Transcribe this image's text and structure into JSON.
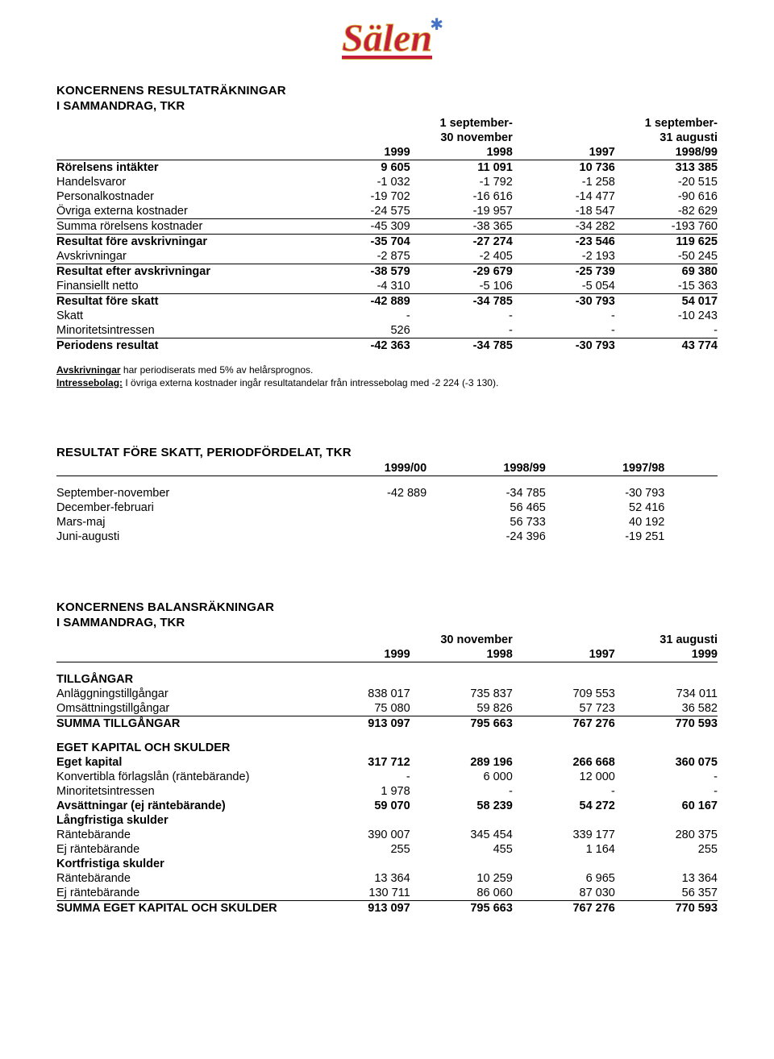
{
  "logo": {
    "text": "Sälen",
    "accent_color": "#c41e3a",
    "star_color": "#4472c4"
  },
  "table1": {
    "title": "KONCERNENS RESULTATRÄKNINGAR",
    "subtitle": "I SAMMANDRAG, TKR",
    "header1": {
      "left": "1 september-",
      "right": "1 september-"
    },
    "header2": {
      "left": "30 november",
      "right": "31 augusti"
    },
    "years": {
      "c1": "1999",
      "c2": "1998",
      "c3": "1997",
      "c4": "1998/99"
    },
    "rows": [
      {
        "label": "Rörelsens intäkter",
        "c1": "9 605",
        "c2": "11 091",
        "c3": "10 736",
        "c4": "313 385",
        "bold": true
      },
      {
        "label": "Handelsvaror",
        "c1": "-1 032",
        "c2": "-1 792",
        "c3": "-1 258",
        "c4": "-20 515"
      },
      {
        "label": "Personalkostnader",
        "c1": "-19 702",
        "c2": "-16 616",
        "c3": "-14 477",
        "c4": "-90 616"
      },
      {
        "label": "Övriga externa kostnader",
        "c1": "-24 575",
        "c2": "-19 957",
        "c3": "-18 547",
        "c4": "-82 629",
        "rule": true
      },
      {
        "label": "Summa rörelsens kostnader",
        "c1": "-45 309",
        "c2": "-38 365",
        "c3": "-34 282",
        "c4": "-193 760",
        "rule": true
      },
      {
        "label": "Resultat före avskrivningar",
        "c1": "-35 704",
        "c2": "-27 274",
        "c3": "-23 546",
        "c4": "119 625",
        "bold": true
      },
      {
        "label": "Avskrivningar",
        "c1": "-2 875",
        "c2": "-2 405",
        "c3": "-2 193",
        "c4": "-50 245",
        "rule": true
      },
      {
        "label": "Resultat efter avskrivningar",
        "c1": "-38 579",
        "c2": "-29 679",
        "c3": "-25 739",
        "c4": "69 380",
        "bold": true
      },
      {
        "label": "Finansiellt netto",
        "c1": "-4 310",
        "c2": "-5 106",
        "c3": "-5 054",
        "c4": "-15 363",
        "rule": true
      },
      {
        "label": "Resultat före skatt",
        "c1": "-42 889",
        "c2": "-34 785",
        "c3": "-30 793",
        "c4": "54 017",
        "bold": true
      },
      {
        "label": "Skatt",
        "c1": "-",
        "c2": "-",
        "c3": "-",
        "c4": "-10 243"
      },
      {
        "label": "Minoritetsintressen",
        "c1": "526",
        "c2": "-",
        "c3": "-",
        "c4": "-",
        "rule": true
      },
      {
        "label": "Periodens resultat",
        "c1": "-42 363",
        "c2": "-34 785",
        "c3": "-30 793",
        "c4": "43 774",
        "bold": true
      }
    ],
    "note1_label": "Avskrivningar",
    "note1_text": " har periodiserats med 5% av helårsprognos.",
    "note2_label": "Intressebolag:",
    "note2_text": " I övriga externa kostnader ingår resultatandelar från intressebolag med -2 224 (-3 130)."
  },
  "table2": {
    "title": "RESULTAT FÖRE SKATT, PERIODFÖRDELAT, TKR",
    "years": {
      "c1": "1999/00",
      "c2": "1998/99",
      "c3": "1997/98"
    },
    "rows": [
      {
        "label": "September-november",
        "c1": "-42 889",
        "c2": "-34 785",
        "c3": "-30 793"
      },
      {
        "label": "December-februari",
        "c1": "",
        "c2": "56 465",
        "c3": "52 416"
      },
      {
        "label": "Mars-maj",
        "c1": "",
        "c2": "56 733",
        "c3": "40 192"
      },
      {
        "label": "Juni-augusti",
        "c1": "",
        "c2": "-24 396",
        "c3": "-19 251"
      }
    ]
  },
  "table3": {
    "title": "KONCERNENS BALANSRÄKNINGAR",
    "subtitle": "I SAMMANDRAG, TKR",
    "header2": {
      "left": "30 november",
      "right": "31 augusti"
    },
    "years": {
      "c1": "1999",
      "c2": "1998",
      "c3": "1997",
      "c4": "1999"
    },
    "sec1": "TILLGÅNGAR",
    "rows1": [
      {
        "label": "Anläggningstillgångar",
        "c1": "838 017",
        "c2": "735 837",
        "c3": "709 553",
        "c4": "734 011"
      },
      {
        "label": "Omsättningstillgångar",
        "c1": "75 080",
        "c2": "59 826",
        "c3": "57 723",
        "c4": "36 582",
        "rule": true
      },
      {
        "label": "SUMMA TILLGÅNGAR",
        "c1": "913 097",
        "c2": "795 663",
        "c3": "767 276",
        "c4": "770 593",
        "bold": true
      }
    ],
    "sec2": "EGET KAPITAL OCH SKULDER",
    "rows2": [
      {
        "label": "Eget kapital",
        "c1": "317 712",
        "c2": "289 196",
        "c3": "266 668",
        "c4": "360 075",
        "bold": true
      },
      {
        "label": "Konvertibla förlagslån (räntebärande)",
        "c1": "-",
        "c2": "6 000",
        "c3": "12 000",
        "c4": "-"
      },
      {
        "label": "Minoritetsintressen",
        "c1": "1 978",
        "c2": "-",
        "c3": "-",
        "c4": "-"
      },
      {
        "label": "Avsättningar (ej räntebärande)",
        "c1": "59 070",
        "c2": "58 239",
        "c3": "54 272",
        "c4": "60 167",
        "bold": true
      }
    ],
    "sec3": "Långfristiga skulder",
    "rows3": [
      {
        "label": "Räntebärande",
        "c1": "390 007",
        "c2": "345 454",
        "c3": "339 177",
        "c4": "280 375"
      },
      {
        "label": "Ej räntebärande",
        "c1": "255",
        "c2": "455",
        "c3": "1 164",
        "c4": "255"
      }
    ],
    "sec4": "Kortfristiga skulder",
    "rows4": [
      {
        "label": "Räntebärande",
        "c1": "13 364",
        "c2": "10 259",
        "c3": "6 965",
        "c4": "13 364"
      },
      {
        "label": "Ej räntebärande",
        "c1": "130 711",
        "c2": "86 060",
        "c3": "87 030",
        "c4": "56 357",
        "rule": true
      },
      {
        "label": "SUMMA EGET KAPITAL OCH SKULDER",
        "c1": "913 097",
        "c2": "795 663",
        "c3": "767 276",
        "c4": "770 593",
        "bold": true
      }
    ]
  }
}
